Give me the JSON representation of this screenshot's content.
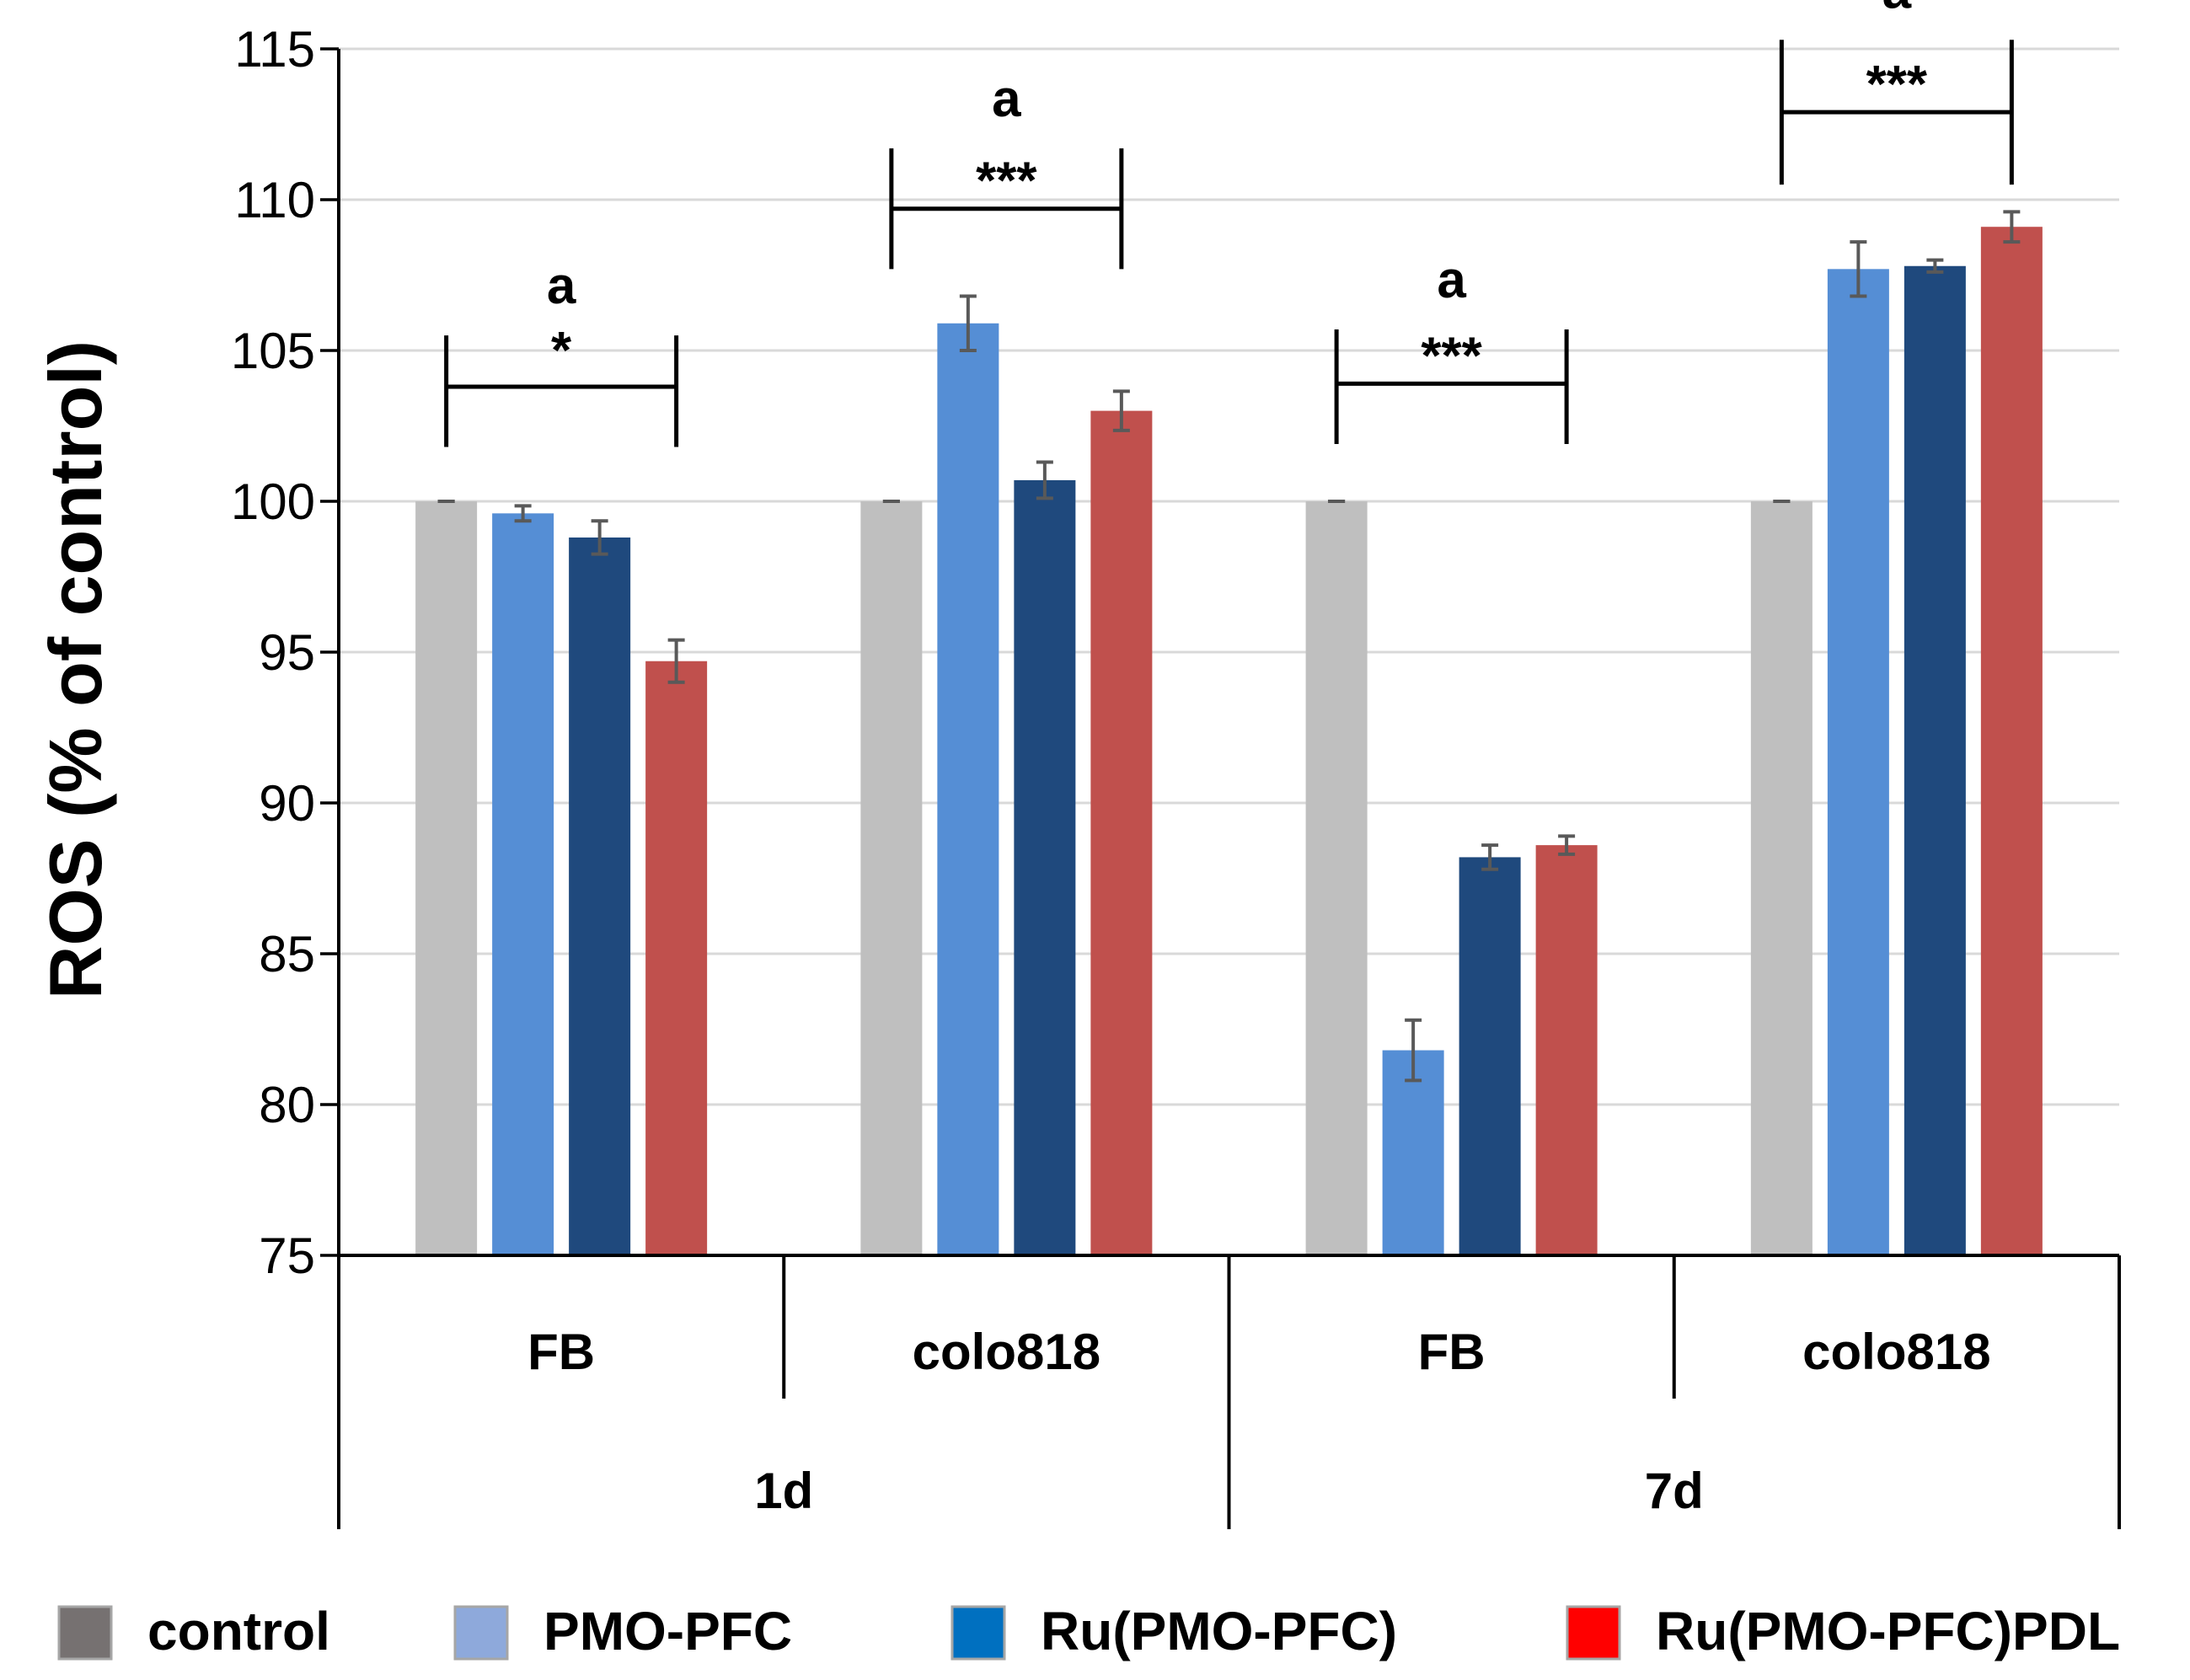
{
  "chart_data": {
    "type": "bar",
    "title": "",
    "xlabel": "",
    "ylabel": "ROS (% of control)",
    "ylim": [
      75,
      115
    ],
    "yticks": [
      75,
      80,
      85,
      90,
      95,
      100,
      105,
      110,
      115
    ],
    "grid": true,
    "legend_position": "bottom",
    "time_groups": [
      {
        "label": "1d",
        "cells": [
          "FB",
          "colo818"
        ]
      },
      {
        "label": "7d",
        "cells": [
          "FB",
          "colo818"
        ]
      }
    ],
    "categories": [
      "FB",
      "colo818",
      "FB",
      "colo818"
    ],
    "series": [
      {
        "name": "control",
        "color": "#BFBFBF",
        "legend_color": "#767171",
        "values": [
          100,
          100,
          100,
          100
        ],
        "errors": [
          0,
          0,
          0,
          0
        ]
      },
      {
        "name": "PMO-PFC",
        "color": "#558ED5",
        "legend_color": "#8EA9DB",
        "values": [
          99.6,
          105.9,
          81.8,
          107.7
        ],
        "errors": [
          0.25,
          0.9,
          1.0,
          0.9
        ]
      },
      {
        "name": "Ru(PMO-PFC)",
        "color": "#1F497D",
        "legend_color": "#0070C0",
        "values": [
          98.8,
          100.7,
          88.2,
          107.8
        ],
        "errors": [
          0.55,
          0.6,
          0.4,
          0.2
        ]
      },
      {
        "name": "Ru(PMO-PFC)PDL",
        "color": "#C0504D",
        "legend_color": "#FF0000",
        "values": [
          94.7,
          103.0,
          88.6,
          109.1
        ],
        "errors": [
          0.7,
          0.65,
          0.3,
          0.5
        ]
      }
    ],
    "annotations": [
      {
        "group": 0,
        "stars": "*",
        "letter": "a",
        "bracket_y": 103.8,
        "tick_top": 105.5,
        "tick_bottom": 101.8
      },
      {
        "group": 1,
        "stars": "***",
        "letter": "a",
        "bracket_y": 109.7,
        "tick_top": 111.7,
        "tick_bottom": 107.7
      },
      {
        "group": 2,
        "stars": "***",
        "letter": "a",
        "bracket_y": 103.9,
        "tick_top": 105.7,
        "tick_bottom": 101.9
      },
      {
        "group": 3,
        "stars": "***",
        "letter": "a",
        "bracket_y": 112.9,
        "tick_top": 115.3,
        "tick_bottom": 110.5
      }
    ]
  }
}
